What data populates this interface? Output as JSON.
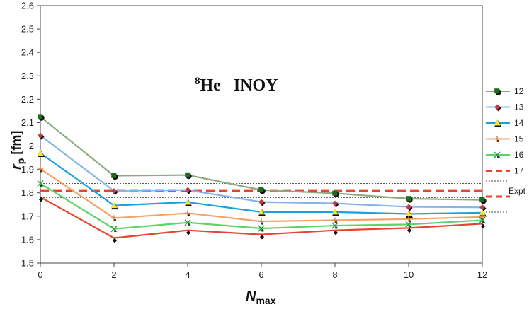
{
  "chart_data": {
    "type": "line",
    "annotation": {
      "mass": "8",
      "text": "He   INOY"
    },
    "xlabel": {
      "main": "N",
      "sub": "max"
    },
    "ylabel": {
      "main": "r",
      "sub": "p",
      "unit": " [fm]"
    },
    "xlim": [
      0,
      12
    ],
    "ylim": [
      1.5,
      2.6
    ],
    "x_ticks": [
      "0",
      "2",
      "4",
      "6",
      "8",
      "10",
      "12"
    ],
    "y_ticks": [
      "1.5",
      "1.6",
      "1.7",
      "1.8",
      "1.9",
      "2",
      "2.1",
      "2.2",
      "2.3",
      "2.4",
      "2.5",
      "2.6"
    ],
    "x": [
      0,
      2,
      4,
      6,
      8,
      10,
      12
    ],
    "series": [
      {
        "name": "12",
        "color": "#8faa7f",
        "marker": "square-dark-green",
        "values": [
          2.125,
          1.873,
          1.876,
          1.812,
          1.798,
          1.775,
          1.77
        ]
      },
      {
        "name": "13",
        "color": "#85b4e8",
        "marker": "diamond-red",
        "values": [
          2.045,
          1.808,
          1.812,
          1.761,
          1.755,
          1.74,
          1.738
        ]
      },
      {
        "name": "14",
        "color": "#1aa0dc",
        "marker": "triangle-yellow",
        "values": [
          1.97,
          1.746,
          1.76,
          1.718,
          1.718,
          1.71,
          1.715
        ]
      },
      {
        "name": "15",
        "color": "#f5a36a",
        "marker": "plus-orange",
        "values": [
          1.902,
          1.692,
          1.713,
          1.678,
          1.683,
          1.688,
          1.697
        ]
      },
      {
        "name": "16",
        "color": "#5ed467",
        "marker": "x-green",
        "values": [
          1.84,
          1.646,
          1.673,
          1.648,
          1.66,
          1.665,
          1.683
        ]
      },
      {
        "name": "17",
        "color": "#e8432c",
        "marker": "none",
        "values": [
          1.782,
          1.607,
          1.64,
          1.622,
          1.64,
          1.65,
          1.668
        ]
      }
    ],
    "expt": {
      "label": "Expt",
      "value": 1.81,
      "band": [
        1.78,
        1.84
      ],
      "color": "#e8432c"
    },
    "grid": false,
    "legend_placement": "right"
  }
}
